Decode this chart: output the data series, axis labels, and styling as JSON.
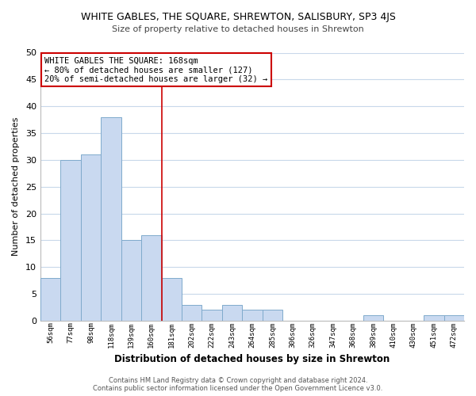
{
  "title": "WHITE GABLES, THE SQUARE, SHREWTON, SALISBURY, SP3 4JS",
  "subtitle": "Size of property relative to detached houses in Shrewton",
  "xlabel": "Distribution of detached houses by size in Shrewton",
  "ylabel": "Number of detached properties",
  "bar_labels": [
    "56sqm",
    "77sqm",
    "98sqm",
    "118sqm",
    "139sqm",
    "160sqm",
    "181sqm",
    "202sqm",
    "222sqm",
    "243sqm",
    "264sqm",
    "285sqm",
    "306sqm",
    "326sqm",
    "347sqm",
    "368sqm",
    "389sqm",
    "410sqm",
    "430sqm",
    "451sqm",
    "472sqm"
  ],
  "bar_heights": [
    8,
    30,
    31,
    38,
    15,
    16,
    8,
    3,
    2,
    3,
    2,
    2,
    0,
    0,
    0,
    0,
    1,
    0,
    0,
    1,
    1
  ],
  "bar_color": "#c9d9f0",
  "bar_edge_color": "#7faacc",
  "vline_color": "#cc0000",
  "vline_pos": 6,
  "ylim": [
    0,
    50
  ],
  "yticks": [
    0,
    5,
    10,
    15,
    20,
    25,
    30,
    35,
    40,
    45,
    50
  ],
  "annotation_title": "WHITE GABLES THE SQUARE: 168sqm",
  "annotation_line1": "← 80% of detached houses are smaller (127)",
  "annotation_line2": "20% of semi-detached houses are larger (32) →",
  "annotation_box_color": "#ffffff",
  "annotation_box_edge": "#cc0000",
  "footer_line1": "Contains HM Land Registry data © Crown copyright and database right 2024.",
  "footer_line2": "Contains public sector information licensed under the Open Government Licence v3.0.",
  "background_color": "#ffffff",
  "grid_color": "#c8d8ea"
}
